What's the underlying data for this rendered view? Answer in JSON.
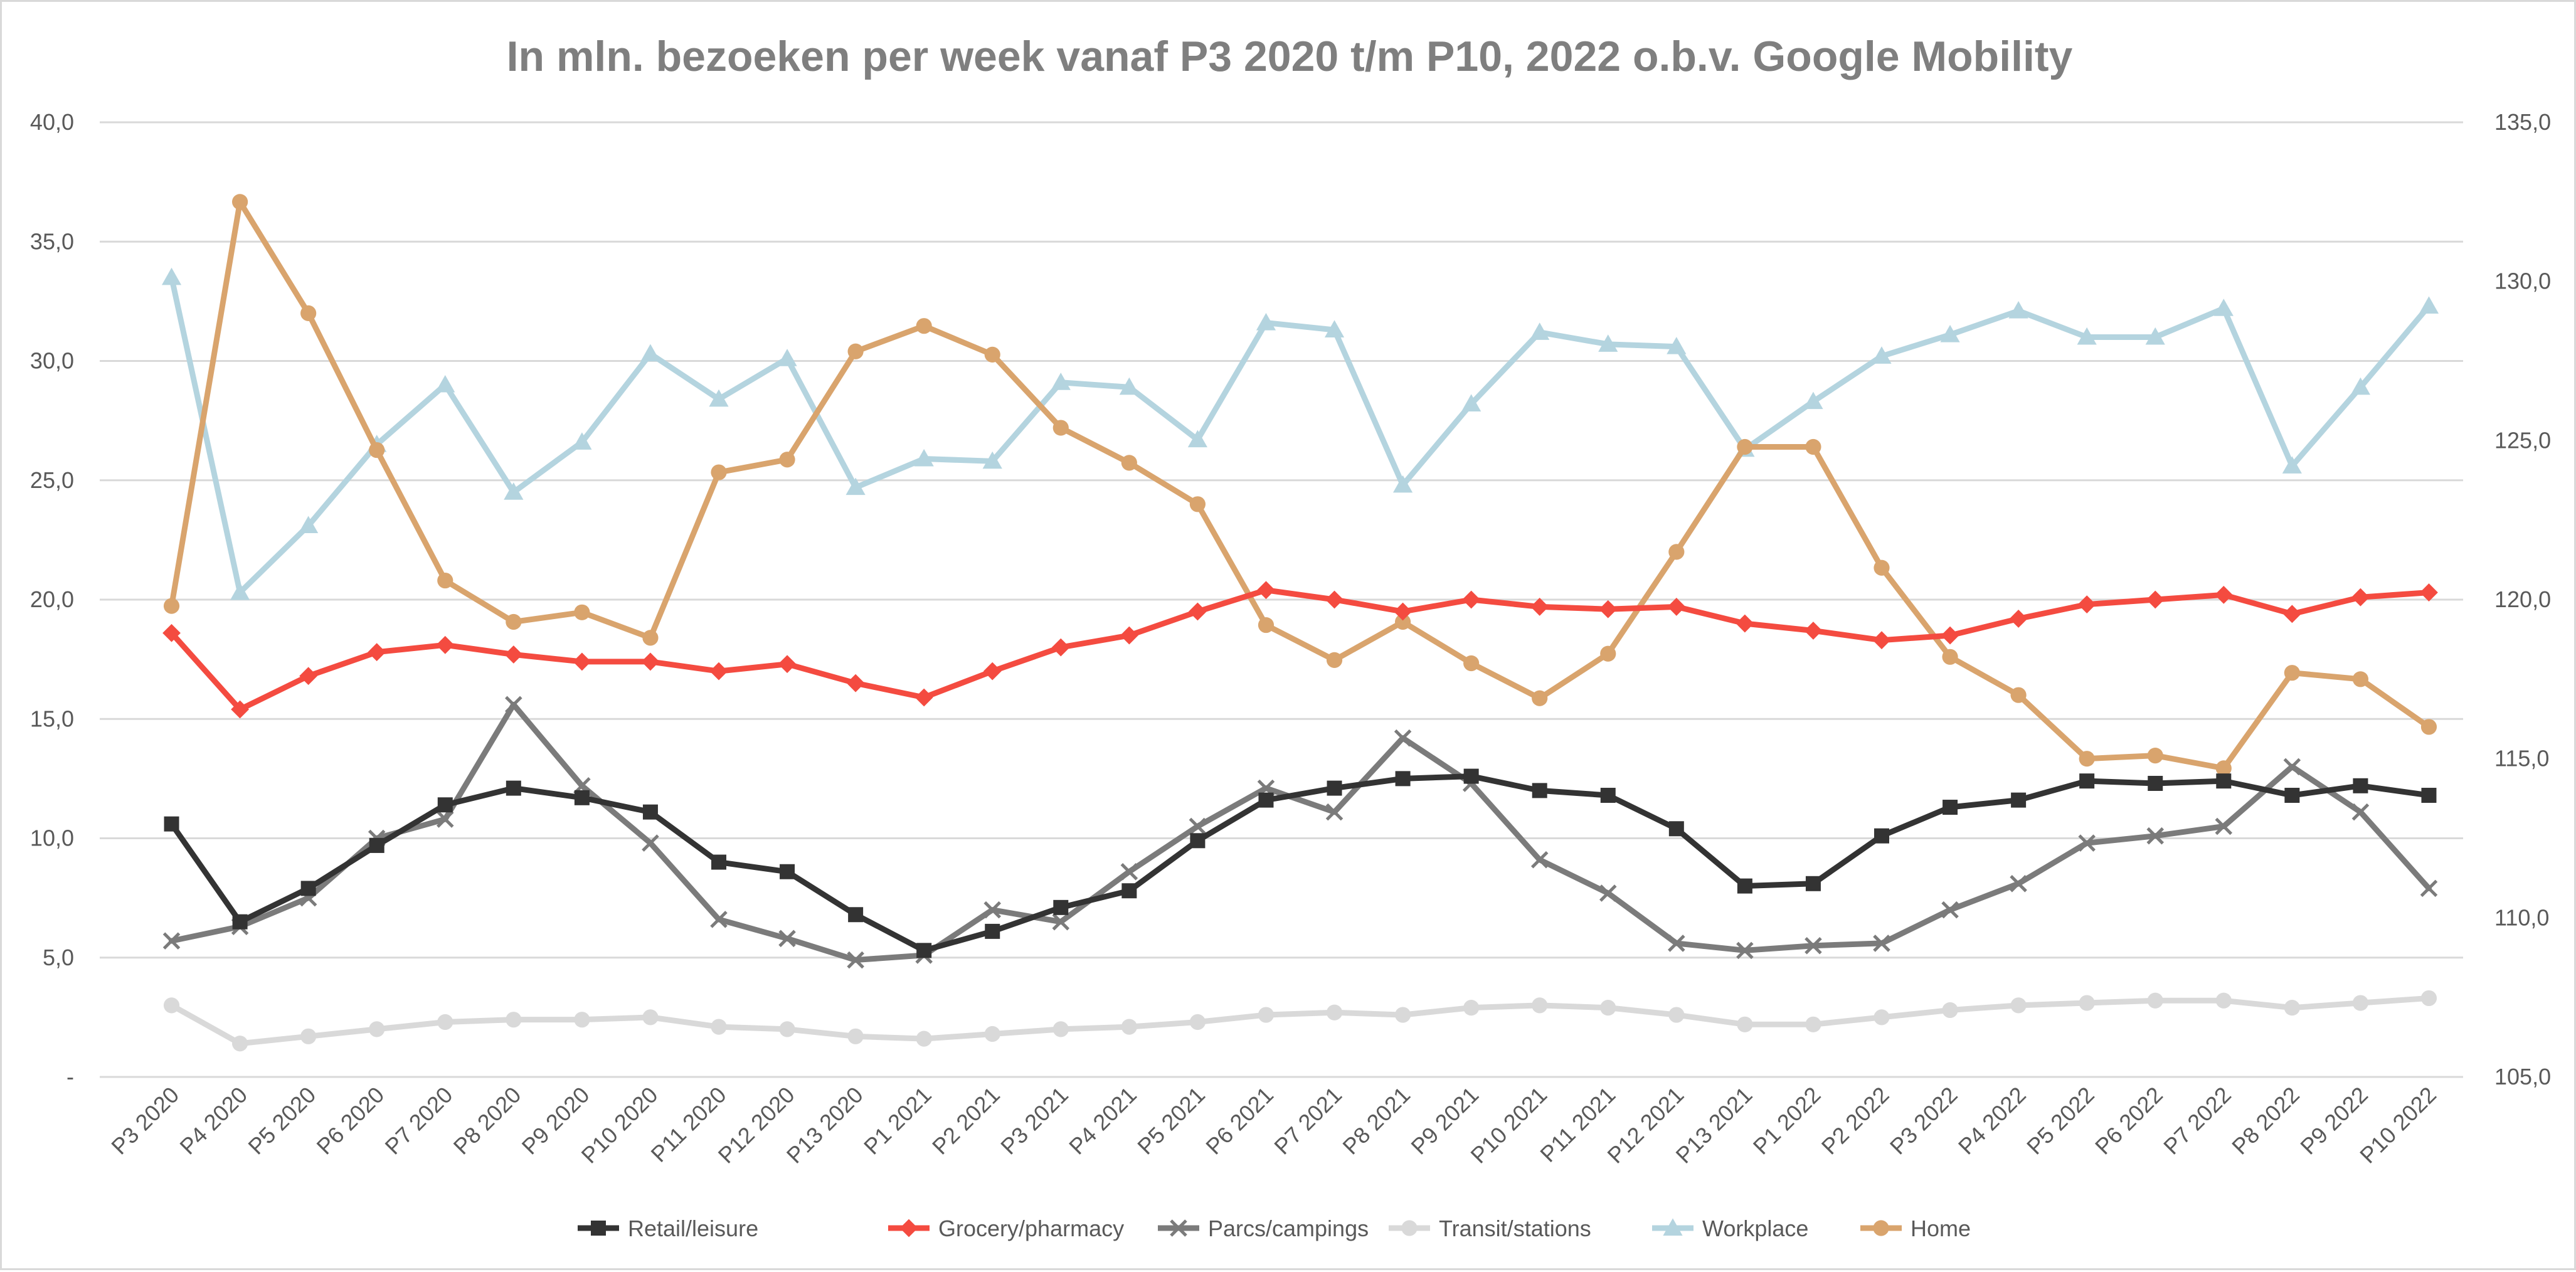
{
  "chart_data": {
    "type": "line",
    "title": "In mln. bezoeken per week vanaf P3 2020 t/m P10, 2022 o.b.v. Google Mobility",
    "xlabel": "",
    "ylabel": "",
    "ylim": [
      0,
      40
    ],
    "y2lim": [
      105,
      135
    ],
    "y_ticks": [
      "-",
      "5,0",
      "10,0",
      "15,0",
      "20,0",
      "25,0",
      "30,0",
      "35,0",
      "40,0"
    ],
    "y2_ticks": [
      "105,0",
      "110,0",
      "115,0",
      "120,0",
      "125,0",
      "130,0",
      "135,0"
    ],
    "grid": "horizontal",
    "legend_position": "bottom",
    "categories": [
      "P3 2020",
      "P4 2020",
      "P5 2020",
      "P6 2020",
      "P7 2020",
      "P8 2020",
      "P9 2020",
      "P10 2020",
      "P11 2020",
      "P12 2020",
      "P13 2020",
      "P1 2021",
      "P2 2021",
      "P3 2021",
      "P4 2021",
      "P5 2021",
      "P6 2021",
      "P7 2021",
      "P8 2021",
      "P9 2021",
      "P10 2021",
      "P11 2021",
      "P12 2021",
      "P13 2021",
      "P1 2022",
      "P2 2022",
      "P3 2022",
      "P4 2022",
      "P5 2022",
      "P6 2022",
      "P7 2022",
      "P8 2022",
      "P9 2022",
      "P10 2022"
    ],
    "series": [
      {
        "name": "Retail/leisure",
        "axis": "left",
        "color": "#333333",
        "marker": "square",
        "values": [
          10.6,
          6.5,
          7.9,
          9.7,
          11.4,
          12.1,
          11.7,
          11.1,
          9.0,
          8.6,
          6.8,
          5.3,
          6.1,
          7.1,
          7.8,
          9.9,
          11.6,
          12.1,
          12.5,
          12.6,
          12.0,
          11.8,
          10.4,
          8.0,
          8.1,
          10.1,
          11.3,
          11.6,
          12.4,
          12.3,
          12.4,
          11.8,
          12.2,
          11.8
        ]
      },
      {
        "name": "Grocery/pharmacy",
        "axis": "left",
        "color": "#f44b40",
        "marker": "diamond",
        "values": [
          18.6,
          15.4,
          16.8,
          17.8,
          18.1,
          17.7,
          17.4,
          17.4,
          17.0,
          17.3,
          16.5,
          15.9,
          17.0,
          18.0,
          18.5,
          19.5,
          20.4,
          20.0,
          19.5,
          20.0,
          19.7,
          19.6,
          19.7,
          19.0,
          18.7,
          18.3,
          18.5,
          19.2,
          19.8,
          20.0,
          20.2,
          19.4,
          20.1,
          20.3
        ]
      },
      {
        "name": "Parcs/campings",
        "axis": "left",
        "color": "#7b7b7b",
        "marker": "x",
        "values": [
          5.7,
          6.3,
          7.5,
          10.0,
          10.8,
          15.6,
          12.2,
          9.8,
          6.6,
          5.8,
          4.9,
          5.1,
          7.0,
          6.5,
          8.6,
          10.5,
          12.1,
          11.1,
          14.2,
          12.3,
          9.1,
          7.7,
          5.6,
          5.3,
          5.5,
          5.6,
          7.0,
          8.1,
          9.8,
          10.1,
          10.5,
          13.0,
          11.1,
          7.9
        ]
      },
      {
        "name": "Transit/stations",
        "axis": "left",
        "color": "#d9d9d9",
        "marker": "circle",
        "values": [
          3.0,
          1.4,
          1.7,
          2.0,
          2.3,
          2.4,
          2.4,
          2.5,
          2.1,
          2.0,
          1.7,
          1.6,
          1.8,
          2.0,
          2.1,
          2.3,
          2.6,
          2.7,
          2.6,
          2.9,
          3.0,
          2.9,
          2.6,
          2.2,
          2.2,
          2.5,
          2.8,
          3.0,
          3.1,
          3.2,
          3.2,
          2.9,
          3.1,
          3.3
        ]
      },
      {
        "name": "Workplace",
        "axis": "left",
        "color": "#b4d4df",
        "marker": "triangle",
        "values": [
          33.5,
          20.3,
          23.1,
          26.5,
          29.0,
          24.5,
          26.6,
          30.3,
          28.4,
          30.1,
          24.7,
          25.9,
          25.8,
          29.1,
          28.9,
          26.7,
          31.6,
          31.3,
          24.8,
          28.2,
          31.2,
          30.7,
          30.6,
          26.3,
          28.3,
          30.2,
          31.1,
          32.1,
          31.0,
          31.0,
          32.2,
          25.6,
          28.9,
          32.3
        ]
      },
      {
        "name": "Home",
        "axis": "right",
        "color": "#d9a46d",
        "marker": "circle",
        "values": [
          119.8,
          132.5,
          129.0,
          124.7,
          120.6,
          119.3,
          119.6,
          118.8,
          124.0,
          124.4,
          127.8,
          128.6,
          127.7,
          125.4,
          124.3,
          123.0,
          119.2,
          118.1,
          119.3,
          118.0,
          116.9,
          118.3,
          121.5,
          124.8,
          124.8,
          121.0,
          118.2,
          117.0,
          115.0,
          115.1,
          114.7,
          117.7,
          117.5,
          116.0
        ]
      }
    ]
  }
}
